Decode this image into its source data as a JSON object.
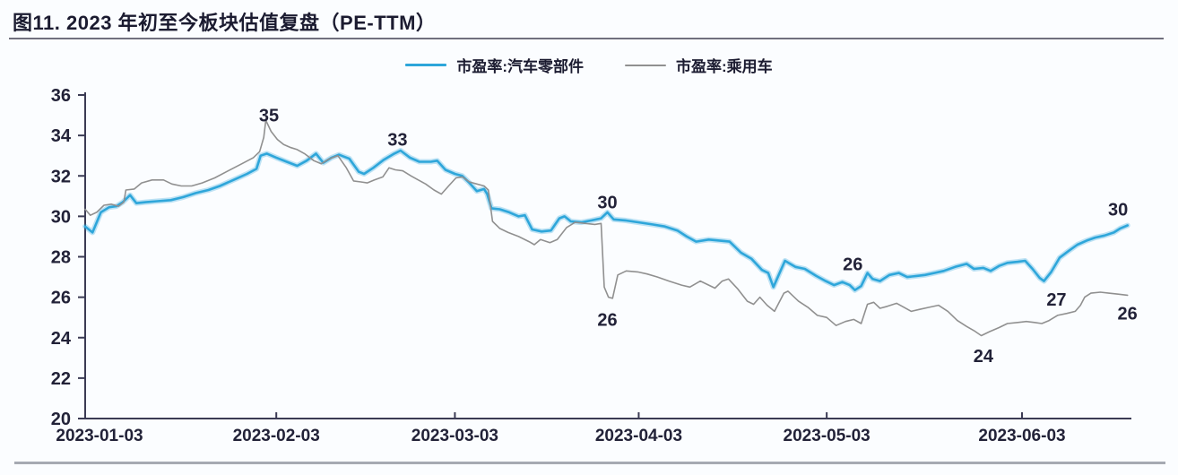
{
  "header": {
    "title": "图11. 2023 年初至今板块估值复盘（PE-TTM）"
  },
  "colors": {
    "background": "#fbfdff",
    "text": "#222238",
    "axis": "#3b3b54",
    "blue_series": "#2ea6da",
    "gray_series": "#909090",
    "title_rule": "#70707e",
    "bottom_rule": "#a6aab2"
  },
  "chart_data": {
    "type": "line",
    "title": "图11. 2023 年初至今板块估值复盘（PE-TTM）",
    "ylim": [
      20,
      36
    ],
    "y_ticks": [
      20,
      22,
      24,
      26,
      28,
      30,
      32,
      34,
      36
    ],
    "x_ticks": [
      {
        "f": 0.0,
        "label": "2023-01-03"
      },
      {
        "f": 0.183,
        "label": "2023-02-03"
      },
      {
        "f": 0.354,
        "label": "2023-03-03"
      },
      {
        "f": 0.53,
        "label": "2023-04-03"
      },
      {
        "f": 0.71,
        "label": "2023-05-03"
      },
      {
        "f": 0.897,
        "label": "2023-06-03"
      }
    ],
    "legend_position": "top-center",
    "grid": false,
    "series": [
      {
        "name": "市盈率:汽车零部件",
        "color": "#2ea6da",
        "width": 2.6,
        "points": [
          [
            0,
            29.5
          ],
          [
            0.007,
            29.2
          ],
          [
            0.015,
            30.2
          ],
          [
            0.023,
            30.45
          ],
          [
            0.03,
            30.5
          ],
          [
            0.036,
            30.7
          ],
          [
            0.043,
            31.05
          ],
          [
            0.049,
            30.65
          ],
          [
            0.058,
            30.7
          ],
          [
            0.069,
            30.75
          ],
          [
            0.082,
            30.8
          ],
          [
            0.094,
            30.95
          ],
          [
            0.106,
            31.15
          ],
          [
            0.118,
            31.3
          ],
          [
            0.129,
            31.5
          ],
          [
            0.142,
            31.8
          ],
          [
            0.155,
            32.1
          ],
          [
            0.164,
            32.35
          ],
          [
            0.168,
            33.0
          ],
          [
            0.174,
            33.1
          ],
          [
            0.183,
            32.9
          ],
          [
            0.193,
            32.7
          ],
          [
            0.203,
            32.5
          ],
          [
            0.212,
            32.75
          ],
          [
            0.221,
            33.1
          ],
          [
            0.228,
            32.65
          ],
          [
            0.236,
            32.9
          ],
          [
            0.243,
            33.05
          ],
          [
            0.253,
            32.85
          ],
          [
            0.262,
            32.2
          ],
          [
            0.267,
            32.1
          ],
          [
            0.276,
            32.4
          ],
          [
            0.286,
            32.8
          ],
          [
            0.296,
            33.1
          ],
          [
            0.302,
            33.25
          ],
          [
            0.311,
            32.9
          ],
          [
            0.32,
            32.7
          ],
          [
            0.331,
            32.7
          ],
          [
            0.337,
            32.75
          ],
          [
            0.345,
            32.3
          ],
          [
            0.354,
            32.1
          ],
          [
            0.361,
            32.0
          ],
          [
            0.367,
            31.7
          ],
          [
            0.375,
            31.25
          ],
          [
            0.382,
            31.35
          ],
          [
            0.385,
            31.1
          ],
          [
            0.389,
            30.4
          ],
          [
            0.397,
            30.35
          ],
          [
            0.406,
            30.2
          ],
          [
            0.415,
            30.0
          ],
          [
            0.421,
            30.05
          ],
          [
            0.428,
            29.35
          ],
          [
            0.437,
            29.25
          ],
          [
            0.446,
            29.3
          ],
          [
            0.454,
            29.9
          ],
          [
            0.459,
            30.0
          ],
          [
            0.465,
            29.75
          ],
          [
            0.475,
            29.7
          ],
          [
            0.485,
            29.8
          ],
          [
            0.494,
            29.9
          ],
          [
            0.5,
            30.2
          ],
          [
            0.506,
            29.85
          ],
          [
            0.517,
            29.8
          ],
          [
            0.53,
            29.7
          ],
          [
            0.543,
            29.6
          ],
          [
            0.555,
            29.5
          ],
          [
            0.567,
            29.3
          ],
          [
            0.576,
            29.0
          ],
          [
            0.585,
            28.75
          ],
          [
            0.597,
            28.85
          ],
          [
            0.607,
            28.8
          ],
          [
            0.617,
            28.75
          ],
          [
            0.628,
            28.2
          ],
          [
            0.638,
            27.9
          ],
          [
            0.648,
            27.35
          ],
          [
            0.654,
            27.2
          ],
          [
            0.659,
            26.5
          ],
          [
            0.664,
            27.1
          ],
          [
            0.67,
            27.8
          ],
          [
            0.68,
            27.5
          ],
          [
            0.689,
            27.4
          ],
          [
            0.7,
            27.05
          ],
          [
            0.709,
            26.8
          ],
          [
            0.717,
            26.6
          ],
          [
            0.725,
            26.75
          ],
          [
            0.732,
            26.6
          ],
          [
            0.737,
            26.35
          ],
          [
            0.743,
            26.55
          ],
          [
            0.749,
            27.2
          ],
          [
            0.754,
            26.9
          ],
          [
            0.761,
            26.8
          ],
          [
            0.77,
            27.1
          ],
          [
            0.779,
            27.2
          ],
          [
            0.787,
            27.0
          ],
          [
            0.796,
            27.05
          ],
          [
            0.804,
            27.1
          ],
          [
            0.813,
            27.2
          ],
          [
            0.822,
            27.3
          ],
          [
            0.833,
            27.5
          ],
          [
            0.844,
            27.65
          ],
          [
            0.851,
            27.4
          ],
          [
            0.86,
            27.45
          ],
          [
            0.867,
            27.3
          ],
          [
            0.875,
            27.55
          ],
          [
            0.883,
            27.7
          ],
          [
            0.893,
            27.75
          ],
          [
            0.9,
            27.8
          ],
          [
            0.907,
            27.4
          ],
          [
            0.914,
            26.95
          ],
          [
            0.918,
            26.8
          ],
          [
            0.925,
            27.25
          ],
          [
            0.933,
            27.95
          ],
          [
            0.942,
            28.3
          ],
          [
            0.95,
            28.6
          ],
          [
            0.959,
            28.8
          ],
          [
            0.967,
            28.95
          ],
          [
            0.976,
            29.05
          ],
          [
            0.985,
            29.2
          ],
          [
            0.991,
            29.4
          ],
          [
            0.998,
            29.55
          ]
        ]
      },
      {
        "name": "市盈率:乘用车",
        "color": "#909090",
        "width": 1.6,
        "points": [
          [
            0,
            30.35
          ],
          [
            0.005,
            30.05
          ],
          [
            0.011,
            30.2
          ],
          [
            0.018,
            30.55
          ],
          [
            0.025,
            30.6
          ],
          [
            0.032,
            30.5
          ],
          [
            0.037,
            30.7
          ],
          [
            0.039,
            31.3
          ],
          [
            0.047,
            31.35
          ],
          [
            0.054,
            31.65
          ],
          [
            0.064,
            31.8
          ],
          [
            0.075,
            31.8
          ],
          [
            0.083,
            31.6
          ],
          [
            0.092,
            31.5
          ],
          [
            0.102,
            31.5
          ],
          [
            0.112,
            31.65
          ],
          [
            0.124,
            31.9
          ],
          [
            0.137,
            32.25
          ],
          [
            0.15,
            32.6
          ],
          [
            0.161,
            32.9
          ],
          [
            0.167,
            33.2
          ],
          [
            0.171,
            33.9
          ],
          [
            0.173,
            34.75
          ],
          [
            0.178,
            34.2
          ],
          [
            0.184,
            33.8
          ],
          [
            0.19,
            33.55
          ],
          [
            0.197,
            33.4
          ],
          [
            0.203,
            33.3
          ],
          [
            0.21,
            33.1
          ],
          [
            0.219,
            32.75
          ],
          [
            0.226,
            32.6
          ],
          [
            0.234,
            32.85
          ],
          [
            0.242,
            33.0
          ],
          [
            0.25,
            32.4
          ],
          [
            0.257,
            31.75
          ],
          [
            0.264,
            31.7
          ],
          [
            0.27,
            31.65
          ],
          [
            0.277,
            31.8
          ],
          [
            0.285,
            31.95
          ],
          [
            0.291,
            32.4
          ],
          [
            0.297,
            32.3
          ],
          [
            0.304,
            32.25
          ],
          [
            0.312,
            32.0
          ],
          [
            0.319,
            31.8
          ],
          [
            0.326,
            31.6
          ],
          [
            0.334,
            31.3
          ],
          [
            0.341,
            31.1
          ],
          [
            0.348,
            31.5
          ],
          [
            0.355,
            31.9
          ],
          [
            0.361,
            31.95
          ],
          [
            0.368,
            31.7
          ],
          [
            0.375,
            31.6
          ],
          [
            0.382,
            31.5
          ],
          [
            0.386,
            31.3
          ],
          [
            0.39,
            29.75
          ],
          [
            0.397,
            29.4
          ],
          [
            0.405,
            29.2
          ],
          [
            0.415,
            29.0
          ],
          [
            0.425,
            28.75
          ],
          [
            0.43,
            28.6
          ],
          [
            0.436,
            28.85
          ],
          [
            0.445,
            28.7
          ],
          [
            0.452,
            28.85
          ],
          [
            0.461,
            29.45
          ],
          [
            0.469,
            29.7
          ],
          [
            0.479,
            29.65
          ],
          [
            0.488,
            29.6
          ],
          [
            0.494,
            29.65
          ],
          [
            0.497,
            26.5
          ],
          [
            0.501,
            26.0
          ],
          [
            0.505,
            25.95
          ],
          [
            0.51,
            27.1
          ],
          [
            0.518,
            27.3
          ],
          [
            0.529,
            27.25
          ],
          [
            0.538,
            27.15
          ],
          [
            0.548,
            27.0
          ],
          [
            0.559,
            26.8
          ],
          [
            0.571,
            26.6
          ],
          [
            0.579,
            26.5
          ],
          [
            0.589,
            26.8
          ],
          [
            0.597,
            26.6
          ],
          [
            0.603,
            26.45
          ],
          [
            0.61,
            26.8
          ],
          [
            0.616,
            26.9
          ],
          [
            0.625,
            26.4
          ],
          [
            0.634,
            25.8
          ],
          [
            0.64,
            25.65
          ],
          [
            0.646,
            26.0
          ],
          [
            0.653,
            25.6
          ],
          [
            0.66,
            25.3
          ],
          [
            0.669,
            26.2
          ],
          [
            0.673,
            26.3
          ],
          [
            0.683,
            25.8
          ],
          [
            0.692,
            25.5
          ],
          [
            0.701,
            25.1
          ],
          [
            0.71,
            25.0
          ],
          [
            0.719,
            24.6
          ],
          [
            0.728,
            24.8
          ],
          [
            0.736,
            24.9
          ],
          [
            0.743,
            24.7
          ],
          [
            0.749,
            25.65
          ],
          [
            0.755,
            25.75
          ],
          [
            0.761,
            25.45
          ],
          [
            0.768,
            25.55
          ],
          [
            0.777,
            25.7
          ],
          [
            0.784,
            25.5
          ],
          [
            0.791,
            25.3
          ],
          [
            0.799,
            25.4
          ],
          [
            0.808,
            25.5
          ],
          [
            0.817,
            25.6
          ],
          [
            0.826,
            25.3
          ],
          [
            0.835,
            24.85
          ],
          [
            0.844,
            24.55
          ],
          [
            0.851,
            24.35
          ],
          [
            0.858,
            24.1
          ],
          [
            0.866,
            24.3
          ],
          [
            0.875,
            24.5
          ],
          [
            0.883,
            24.7
          ],
          [
            0.893,
            24.75
          ],
          [
            0.901,
            24.8
          ],
          [
            0.909,
            24.75
          ],
          [
            0.916,
            24.7
          ],
          [
            0.923,
            24.85
          ],
          [
            0.931,
            25.1
          ],
          [
            0.94,
            25.2
          ],
          [
            0.948,
            25.3
          ],
          [
            0.953,
            25.6
          ],
          [
            0.957,
            26.0
          ],
          [
            0.963,
            26.2
          ],
          [
            0.972,
            26.25
          ],
          [
            0.98,
            26.2
          ],
          [
            0.989,
            26.15
          ],
          [
            0.998,
            26.1
          ]
        ]
      }
    ],
    "annotations": [
      {
        "text": "35",
        "f": 0.176,
        "v": 35.0
      },
      {
        "text": "33",
        "f": 0.299,
        "v": 33.8
      },
      {
        "text": "30",
        "f": 0.5,
        "v": 30.7
      },
      {
        "text": "26",
        "f": 0.5,
        "v": 24.9
      },
      {
        "text": "26",
        "f": 0.735,
        "v": 27.65
      },
      {
        "text": "24",
        "f": 0.86,
        "v": 23.1
      },
      {
        "text": "27",
        "f": 0.93,
        "v": 25.9
      },
      {
        "text": "30",
        "f": 0.989,
        "v": 30.35
      },
      {
        "text": "26",
        "f": 0.998,
        "v": 25.2
      }
    ]
  }
}
